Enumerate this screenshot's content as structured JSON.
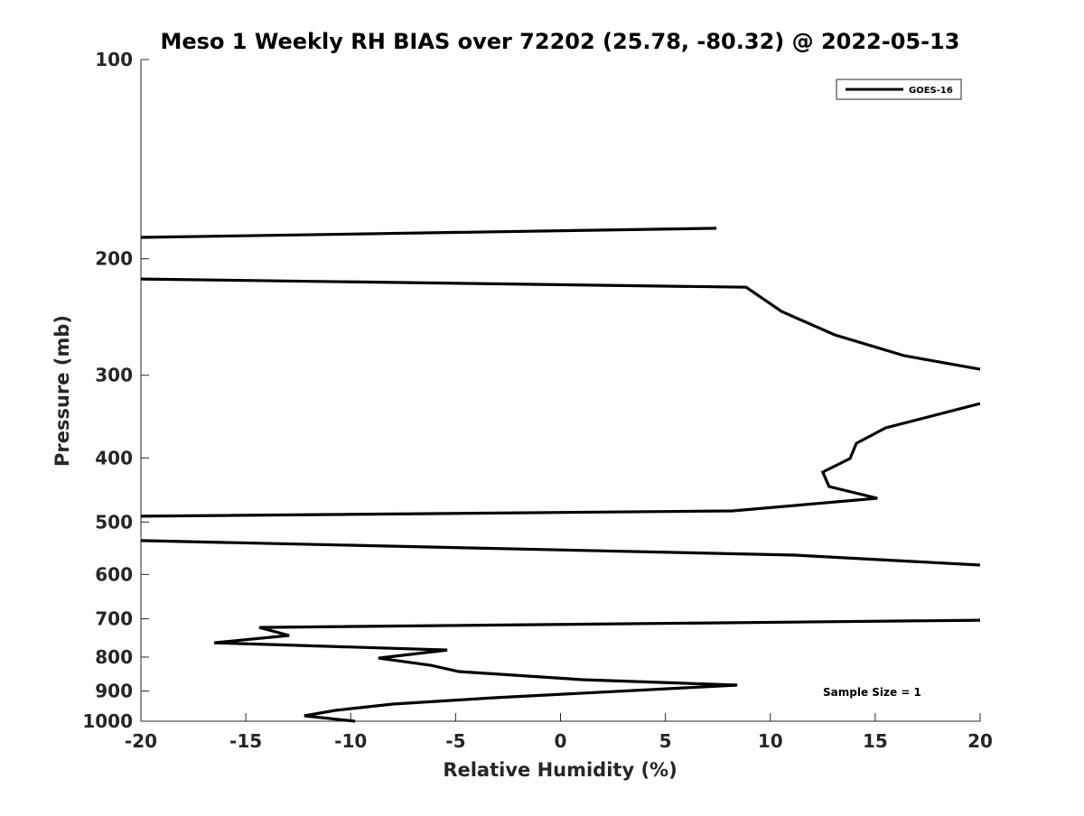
{
  "chart_data": {
    "type": "line",
    "title": "Meso 1 Weekly RH BIAS over 72202 (25.78, -80.32) @ 2022-05-13",
    "xlabel": "Relative Humidity (%)",
    "ylabel": "Pressure (mb)",
    "xlim": [
      -20,
      20
    ],
    "ylim": [
      100,
      1000
    ],
    "yscale": "log",
    "yreversed": true,
    "xticks": [
      -20,
      -15,
      -10,
      -5,
      0,
      5,
      10,
      15,
      20
    ],
    "yticks": [
      100,
      200,
      300,
      400,
      500,
      600,
      700,
      800,
      900,
      1000
    ],
    "grid": false,
    "legend": {
      "placement": "top-right",
      "entries": [
        "GOES-16"
      ]
    },
    "annotation": "Sample Size = 1",
    "series": [
      {
        "name": "GOES-16",
        "color": "#000000",
        "segments": [
          [
            [
              -20,
              185.7
            ],
            [
              7.43,
              179.9
            ]
          ],
          [
            [
              -20,
              214.6
            ],
            [
              8.85,
              220.8
            ],
            [
              10.53,
              240.2
            ],
            [
              13.07,
              260.7
            ],
            [
              16.39,
              280.3
            ],
            [
              20,
              293.8
            ]
          ],
          [
            [
              20,
              331.1
            ],
            [
              15.5,
              360.3
            ],
            [
              14.1,
              380.1
            ],
            [
              13.8,
              400.9
            ],
            [
              12.5,
              420.2
            ],
            [
              12.8,
              441.9
            ],
            [
              15.1,
              460.3
            ],
            [
              8.2,
              481.0
            ],
            [
              -20,
              490.0
            ]
          ],
          [
            [
              -20,
              533.4
            ],
            [
              11.18,
              561.0
            ],
            [
              20,
              580.7
            ]
          ],
          [
            [
              20,
              703.6
            ],
            [
              -14.36,
              721.5
            ],
            [
              -12.94,
              742.1
            ],
            [
              -16.51,
              761.0
            ],
            [
              -5.4,
              780.4
            ],
            [
              -8.68,
              802.8
            ],
            [
              -6.18,
              823.2
            ],
            [
              -4.84,
              841.4
            ],
            [
              1.06,
              865.5
            ],
            [
              8.42,
              882.0
            ],
            [
              -3.16,
              921.5
            ],
            [
              -7.99,
              942.2
            ],
            [
              -10.74,
              963.0
            ],
            [
              -12.21,
              981.3
            ],
            [
              -9.79,
              1000
            ]
          ]
        ]
      }
    ]
  }
}
